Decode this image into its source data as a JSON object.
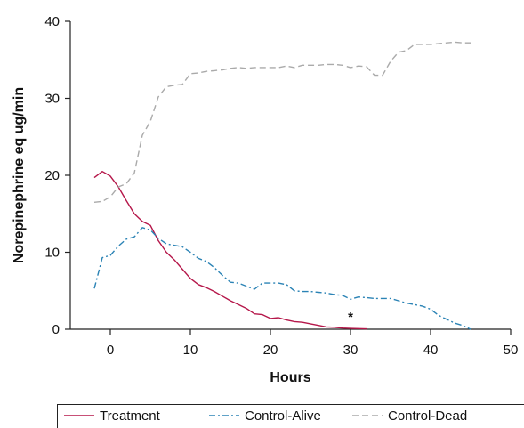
{
  "chart_data": {
    "type": "line",
    "title": "",
    "xlabel": "Hours",
    "ylabel": "Norepinephrine eq ug/min",
    "xlim": [
      -5,
      50
    ],
    "ylim": [
      0,
      40
    ],
    "xticks": [
      0,
      10,
      20,
      30,
      40,
      50
    ],
    "yticks": [
      0,
      10,
      20,
      30,
      40
    ],
    "grid": false,
    "legend_position": "bottom",
    "annotations": [
      {
        "text": "*",
        "x": 30,
        "y": 1.6
      }
    ],
    "series": [
      {
        "name": "Treatment",
        "color": "#b5174a",
        "dash": "solid",
        "x": [
          -2,
          -1,
          0,
          1,
          2,
          3,
          4,
          5,
          6,
          7,
          8,
          9,
          10,
          11,
          12,
          13,
          14,
          15,
          16,
          17,
          18,
          19,
          20,
          21,
          22,
          23,
          24,
          25,
          26,
          27,
          28,
          29,
          30,
          32
        ],
        "y": [
          19.7,
          20.5,
          19.9,
          18.5,
          16.7,
          15.0,
          14.0,
          13.5,
          11.5,
          10.0,
          9.0,
          7.8,
          6.6,
          5.8,
          5.4,
          4.9,
          4.3,
          3.7,
          3.2,
          2.7,
          2.0,
          1.9,
          1.4,
          1.5,
          1.2,
          1.0,
          0.9,
          0.7,
          0.5,
          0.3,
          0.25,
          0.15,
          0.1,
          0.05
        ]
      },
      {
        "name": "Control-Alive",
        "color": "#2b83b5",
        "dash": "dashdot",
        "x": [
          -2,
          -1,
          0,
          1,
          2,
          3,
          4,
          5,
          6,
          7,
          8,
          9,
          10,
          11,
          12,
          13,
          14,
          15,
          16,
          17,
          18,
          19,
          20,
          21,
          22,
          23,
          24,
          25,
          26,
          27,
          28,
          29,
          30,
          31,
          32,
          33,
          34,
          35,
          36,
          37,
          38,
          39,
          40,
          41,
          42,
          43,
          44,
          45
        ],
        "y": [
          5.3,
          9.3,
          9.6,
          10.8,
          11.7,
          12.0,
          13.2,
          12.9,
          11.8,
          11.1,
          10.9,
          10.7,
          10.0,
          9.2,
          8.8,
          8.0,
          7.0,
          6.1,
          6.0,
          5.6,
          5.2,
          6.0,
          6.0,
          6.0,
          5.8,
          5.0,
          4.9,
          4.9,
          4.8,
          4.7,
          4.5,
          4.4,
          3.9,
          4.2,
          4.1,
          4.0,
          4.0,
          4.0,
          3.7,
          3.4,
          3.2,
          3.0,
          2.6,
          1.8,
          1.3,
          0.8,
          0.5,
          0.0
        ]
      },
      {
        "name": "Control-Dead",
        "color": "#aaaaaa",
        "dash": "dashed",
        "x": [
          -2,
          -1,
          0,
          1,
          2,
          3,
          4,
          5,
          6,
          7,
          8,
          9,
          10,
          11,
          12,
          13,
          14,
          15,
          16,
          17,
          18,
          19,
          20,
          21,
          22,
          23,
          24,
          25,
          26,
          27,
          28,
          29,
          30,
          31,
          32,
          33,
          34,
          35,
          36,
          37,
          38,
          39,
          40,
          41,
          42,
          43,
          44,
          45
        ],
        "y": [
          16.5,
          16.6,
          17.2,
          18.5,
          18.9,
          20.3,
          25.2,
          27.0,
          30.2,
          31.5,
          31.7,
          31.8,
          33.2,
          33.3,
          33.5,
          33.6,
          33.7,
          33.9,
          34.0,
          33.9,
          34.0,
          34.0,
          34.0,
          34.0,
          34.2,
          34.0,
          34.3,
          34.3,
          34.3,
          34.4,
          34.4,
          34.3,
          34.0,
          34.2,
          34.1,
          33.0,
          33.0,
          34.8,
          36.0,
          36.2,
          37.0,
          37.0,
          37.0,
          37.1,
          37.2,
          37.3,
          37.2,
          37.2
        ]
      }
    ]
  }
}
